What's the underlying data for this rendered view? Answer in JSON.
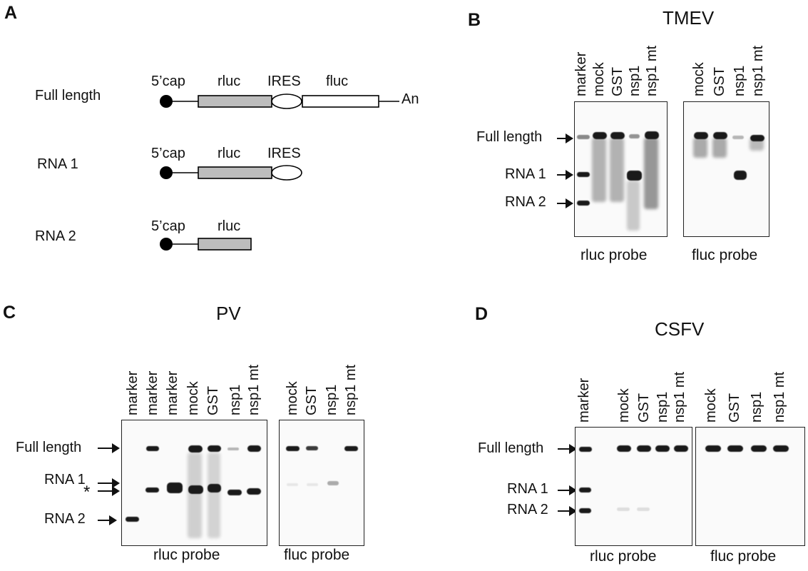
{
  "panels": {
    "a": "A",
    "b": "B",
    "c": "C",
    "d": "D"
  },
  "panel_a": {
    "constructs": [
      {
        "name": "Full length",
        "cap": "5’cap",
        "rluc": "rluc",
        "ires": "IRES",
        "fluc": "fluc",
        "tail": "An"
      },
      {
        "name": "RNA 1",
        "cap": "5’cap",
        "rluc": "rluc",
        "ires": "IRES"
      },
      {
        "name": "RNA 2",
        "cap": "5’cap",
        "rluc": "rluc"
      }
    ]
  },
  "panel_b": {
    "title": "TMEV",
    "rluc_lanes": [
      "marker",
      "mock",
      "GST",
      "nsp1",
      "nsp1 mt"
    ],
    "fluc_lanes": [
      "mock",
      "GST",
      "nsp1",
      "nsp1 mt"
    ],
    "markers": [
      "Full length",
      "RNA 1",
      "RNA 2"
    ],
    "rluc_probe": "rluc probe",
    "fluc_probe": "fluc probe"
  },
  "panel_c": {
    "title": "PV",
    "rluc_lanes": [
      "marker",
      "marker",
      "marker",
      "mock",
      "GST",
      "nsp1",
      "nsp1 mt"
    ],
    "fluc_lanes": [
      "mock",
      "GST",
      "nsp1",
      "nsp1 mt"
    ],
    "markers": [
      "Full length",
      "RNA 1",
      "*",
      "RNA 2"
    ],
    "rluc_probe": "rluc probe",
    "fluc_probe": "fluc probe"
  },
  "panel_d": {
    "title": "CSFV",
    "rluc_lanes": [
      "marker",
      "mock",
      "GST",
      "nsp1",
      "nsp1 mt"
    ],
    "fluc_lanes": [
      "mock",
      "GST",
      "nsp1",
      "nsp1 mt"
    ],
    "markers": [
      "Full length",
      "RNA 1",
      "RNA 2"
    ],
    "rluc_probe": "rluc probe",
    "fluc_probe": "fluc probe"
  }
}
